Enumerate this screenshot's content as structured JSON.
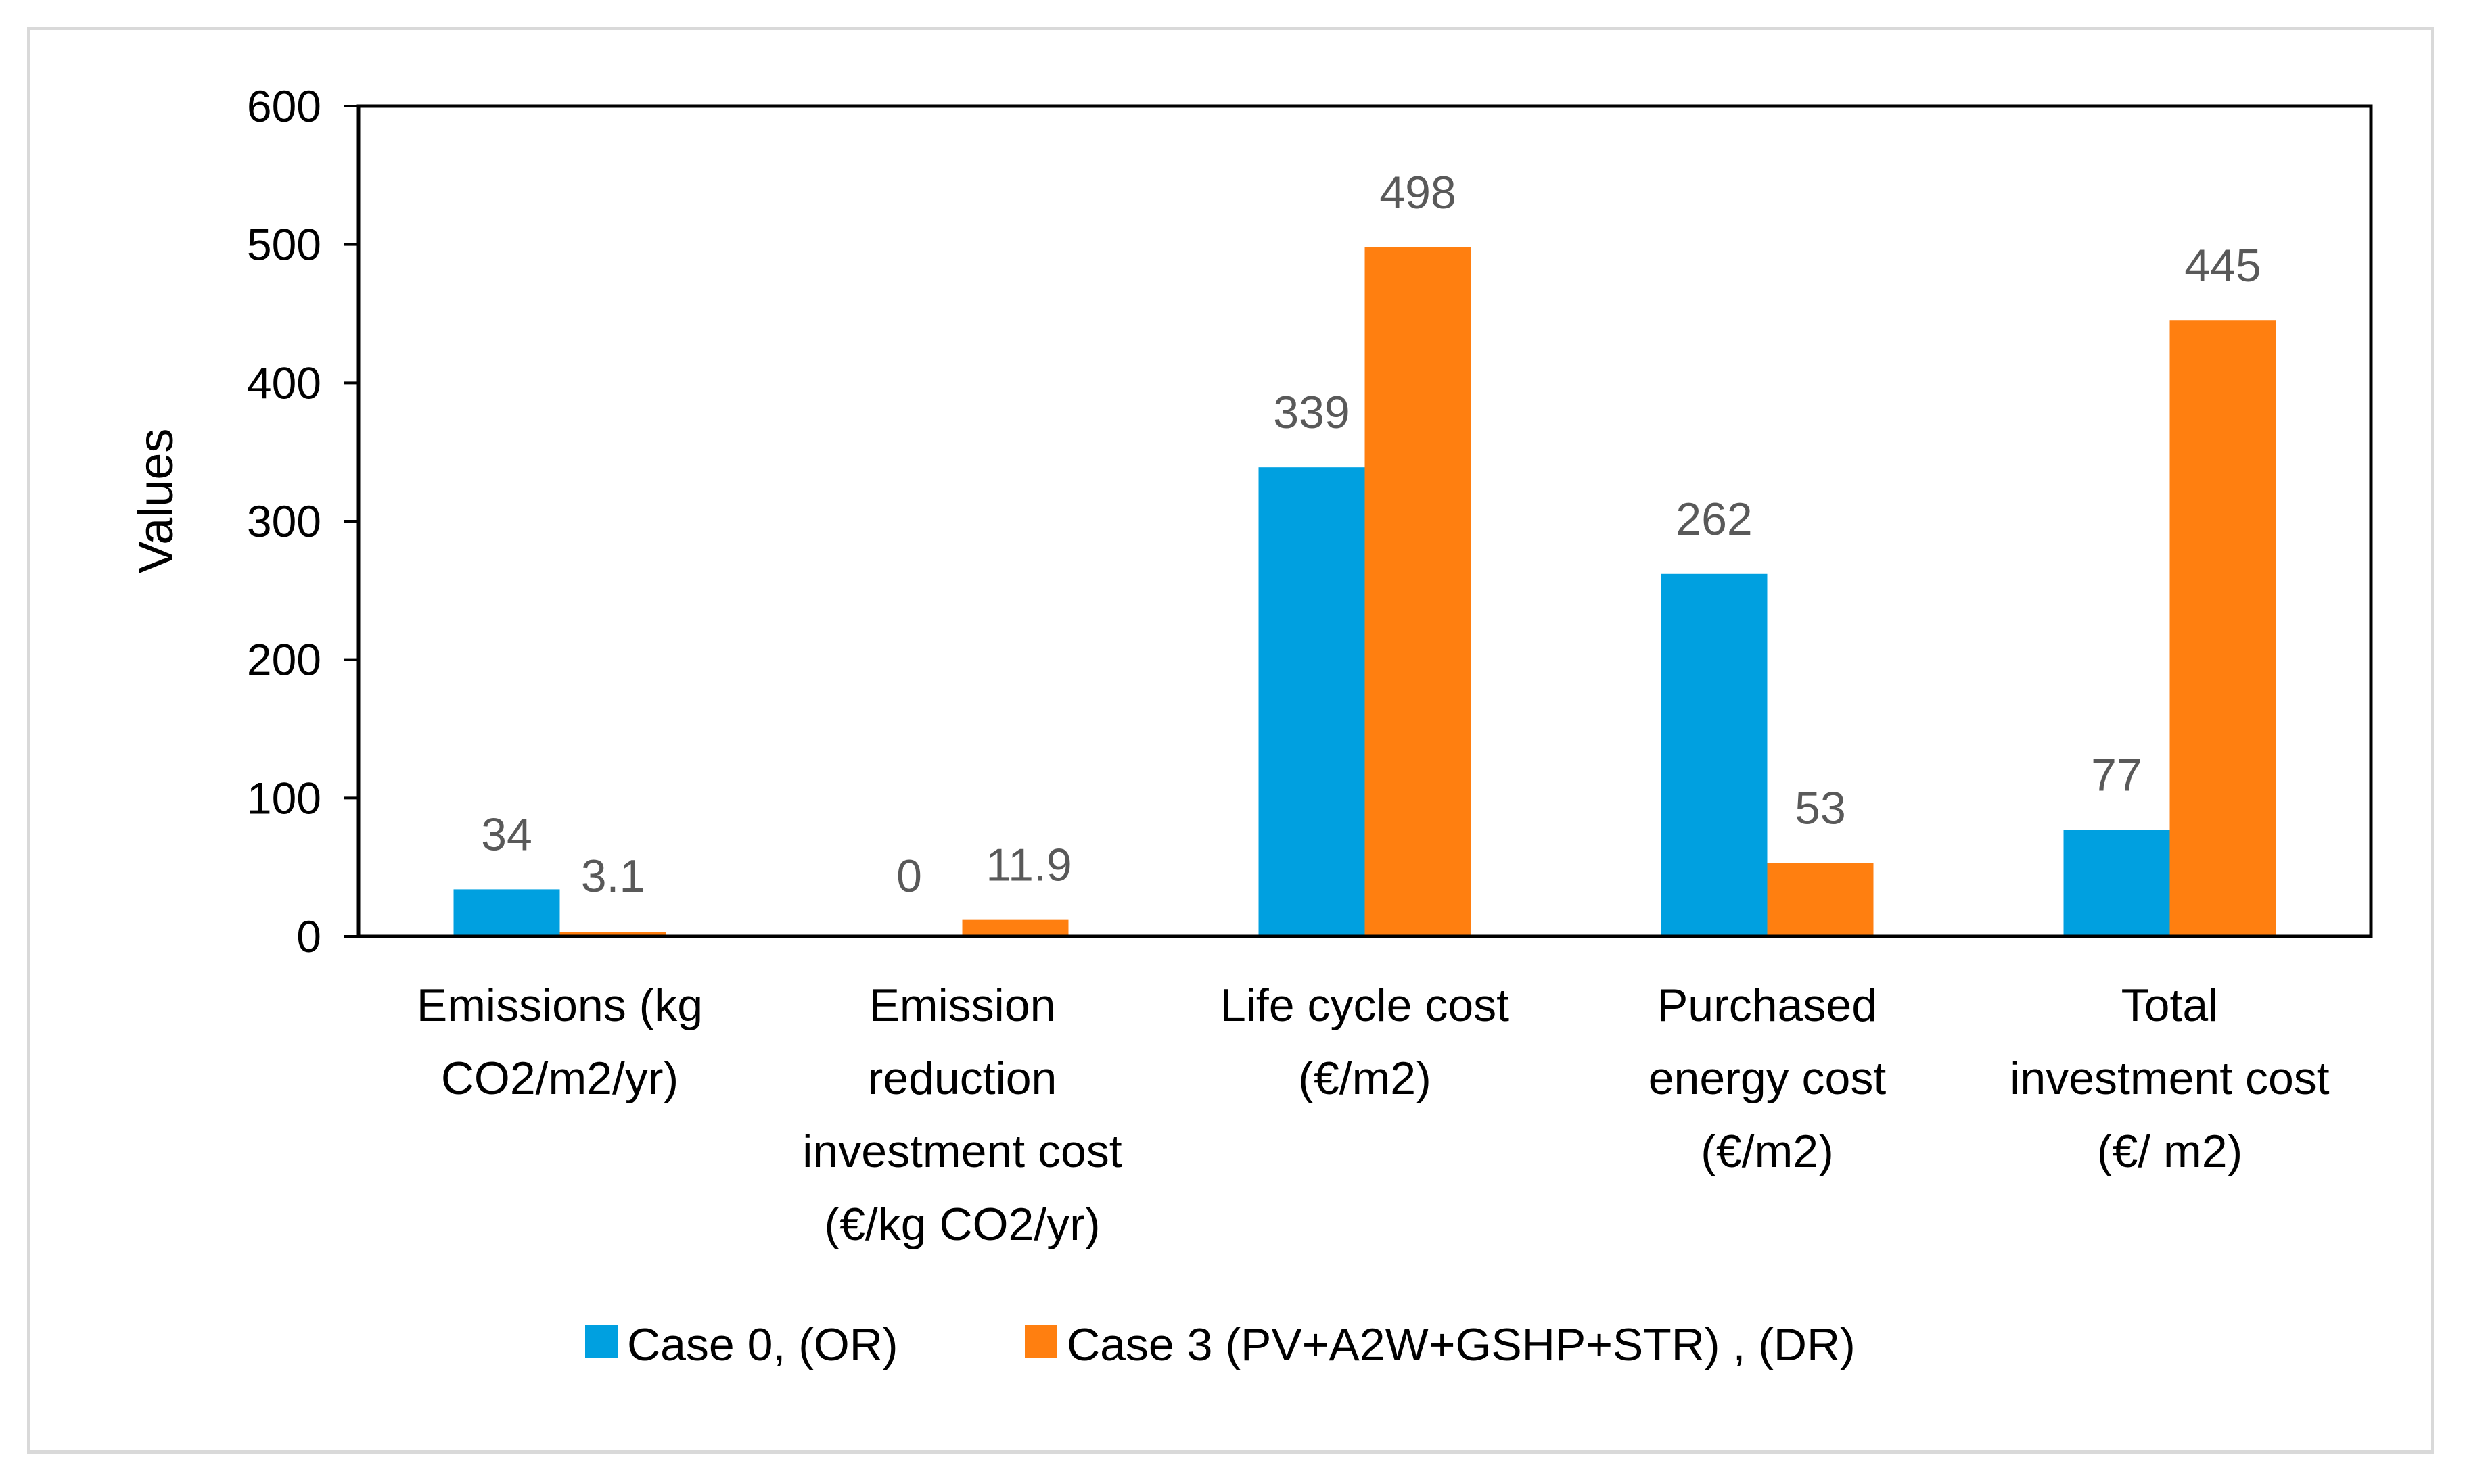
{
  "chart_data": {
    "type": "bar",
    "title": "",
    "xlabel": "",
    "ylabel": "Values",
    "ylim": [
      0,
      600
    ],
    "yticks": [
      0,
      100,
      200,
      300,
      400,
      500,
      600
    ],
    "grid": false,
    "legend_position": "bottom",
    "categories": [
      [
        "Emissions (kg",
        "CO2/m2/yr)"
      ],
      [
        "Emission",
        "reduction",
        "investment cost",
        "(€/kg CO2/yr)"
      ],
      [
        "Life cycle cost",
        "(€/m2)"
      ],
      [
        "Purchased",
        "energy cost",
        "(€/m2)"
      ],
      [
        "Total",
        "investment cost",
        "(€/ m2)"
      ]
    ],
    "series": [
      {
        "name": "Case 0, (OR)",
        "color": "#00a0e0",
        "values": [
          34,
          0,
          339,
          262,
          77
        ],
        "labels": [
          "34",
          "0",
          "339",
          "262",
          "77"
        ]
      },
      {
        "name": "Case 3 (PV+A2W+GSHP+STR) , (DR)",
        "color": "#ff7f10",
        "values": [
          3.1,
          11.9,
          498,
          53,
          445
        ],
        "labels": [
          "3.1",
          "11.9",
          "498",
          "53",
          "445"
        ]
      }
    ]
  }
}
